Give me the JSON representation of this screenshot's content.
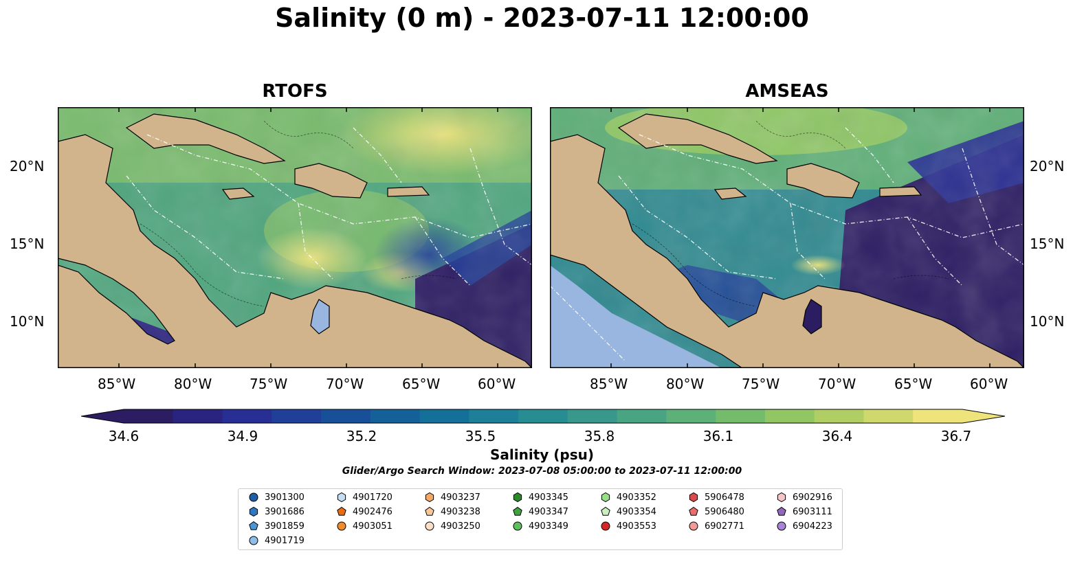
{
  "title": "Salinity (0 m) - 2023-07-11 12:00:00",
  "panels": [
    {
      "title": "RTOFS"
    },
    {
      "title": "AMSEAS"
    }
  ],
  "axes": {
    "lon_ticks": [
      "85°W",
      "80°W",
      "75°W",
      "70°W",
      "65°W",
      "60°W"
    ],
    "lat_ticks": [
      "20°N",
      "15°N",
      "10°N"
    ]
  },
  "colorbar": {
    "label": "Salinity (psu)",
    "min": 34.6,
    "max": 36.7,
    "ticks": [
      "34.6",
      "34.9",
      "35.2",
      "35.5",
      "35.8",
      "36.1",
      "36.4",
      "36.7"
    ],
    "colors": [
      "#2c1d63",
      "#2b2380",
      "#282f94",
      "#1f3f99",
      "#184f99",
      "#146099",
      "#157099",
      "#1d7f98",
      "#288c93",
      "#37988b",
      "#48a482",
      "#5cb078",
      "#75bb6c",
      "#92c563",
      "#b0ce63",
      "#cfd86d",
      "#efe47b"
    ]
  },
  "search_window": "Glider/Argo Search Window: 2023-07-08 05:00:00 to 2023-07-11 12:00:00",
  "legend": [
    {
      "label": "3901300",
      "marker": "circle",
      "color": "#1f5fa5"
    },
    {
      "label": "3901686",
      "marker": "hexagon",
      "color": "#2f78bf"
    },
    {
      "label": "3901859",
      "marker": "pentagon",
      "color": "#4a95d6"
    },
    {
      "label": "4901719",
      "marker": "circle",
      "color": "#8fbfe8"
    },
    {
      "label": "4901720",
      "marker": "hexagon",
      "color": "#c6def2"
    },
    {
      "label": "4902476",
      "marker": "pentagon",
      "color": "#e86d12"
    },
    {
      "label": "4903051",
      "marker": "circle",
      "color": "#f08c2e"
    },
    {
      "label": "4903237",
      "marker": "hexagon",
      "color": "#f5a966"
    },
    {
      "label": "4903238",
      "marker": "pentagon",
      "color": "#f8c79a"
    },
    {
      "label": "4903250",
      "marker": "circle",
      "color": "#fbe0c8"
    },
    {
      "label": "4903345",
      "marker": "hexagon",
      "color": "#2a8a2a"
    },
    {
      "label": "4903347",
      "marker": "pentagon",
      "color": "#3ea23e"
    },
    {
      "label": "4903349",
      "marker": "circle",
      "color": "#5fbf5f"
    },
    {
      "label": "4903352",
      "marker": "hexagon",
      "color": "#98df8a"
    },
    {
      "label": "4903354",
      "marker": "pentagon",
      "color": "#c8efbe"
    },
    {
      "label": "4903553",
      "marker": "circle",
      "color": "#d62728"
    },
    {
      "label": "5906478",
      "marker": "hexagon",
      "color": "#d94a4a"
    },
    {
      "label": "5906480",
      "marker": "pentagon",
      "color": "#e86e6e"
    },
    {
      "label": "6902771",
      "marker": "circle",
      "color": "#f29a9a"
    },
    {
      "label": "6902916",
      "marker": "hexagon",
      "color": "#f6c6c6"
    },
    {
      "label": "6903111",
      "marker": "pentagon",
      "color": "#9467bd"
    },
    {
      "label": "6904223",
      "marker": "circle",
      "color": "#a883d6"
    }
  ],
  "colors": {
    "land": "#d2b48c",
    "lakes": "#98b6e0",
    "ocean_low": "#2c1d63",
    "ocean_high": "#efe47b"
  }
}
